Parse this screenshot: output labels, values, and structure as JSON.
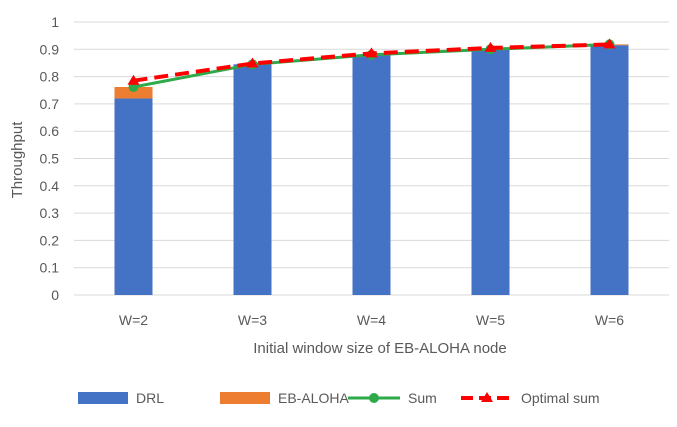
{
  "chart_data": {
    "type": "bar",
    "stacked": true,
    "categories": [
      "W=2",
      "W=3",
      "W=4",
      "W=5",
      "W=6"
    ],
    "series": [
      {
        "name": "DRL",
        "kind": "bar",
        "values": [
          0.72,
          0.845,
          0.88,
          0.9,
          0.915
        ],
        "color": "#4472C4"
      },
      {
        "name": "EB-ALOHA",
        "kind": "bar",
        "values": [
          0.042,
          0.0,
          0.0,
          0.0,
          0.003
        ],
        "color": "#ED7D31"
      },
      {
        "name": "Sum",
        "kind": "line",
        "marker": "circle",
        "values": [
          0.762,
          0.845,
          0.88,
          0.9,
          0.918
        ],
        "color": "#2EAA4A"
      },
      {
        "name": "Optimal sum",
        "kind": "line",
        "marker": "triangle",
        "dashed": true,
        "values": [
          0.785,
          0.848,
          0.885,
          0.905,
          0.918
        ],
        "color": "#FF0000"
      }
    ],
    "title": "",
    "xlabel": "Initial window size of EB-ALOHA  node",
    "ylabel": "Throughput",
    "ylim": [
      0,
      1
    ],
    "yticks": [
      "0",
      "0.1",
      "0.2",
      "0.3",
      "0.4",
      "0.5",
      "0.6",
      "0.7",
      "0.8",
      "0.9",
      "1"
    ],
    "grid": true,
    "legend_position": "bottom"
  }
}
